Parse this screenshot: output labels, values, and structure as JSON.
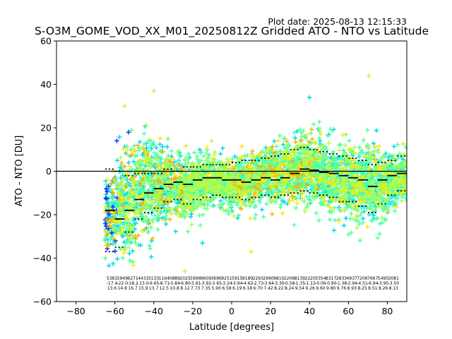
{
  "header": {
    "plot_date": "Plot date: 2025-08-13 12:15:33",
    "title": "S-O3M_GOME_VOD_XX_M01_20250812Z Gridded ATO - NTO vs Latitude"
  },
  "chart_data": {
    "type": "scatter",
    "title": "S-O3M_GOME_VOD_XX_M01_20250812Z Gridded ATO - NTO vs Latitude",
    "xlabel": "Latitude [degrees]",
    "ylabel": "ATO - NTO [DU]",
    "xlim": [
      -90,
      90
    ],
    "ylim": [
      -60,
      60
    ],
    "xticks": [
      -80,
      -60,
      -40,
      -20,
      0,
      20,
      40,
      60,
      80
    ],
    "yticks": [
      -60,
      -40,
      -20,
      0,
      20,
      40,
      60
    ],
    "grid": false,
    "reference_line_y": 0,
    "marker": "+",
    "colors": {
      "cloud_main": "#55ffa0",
      "cloud_cyan": "#00d8f0",
      "cloud_yellow": "#ffe800",
      "cloud_green": "#a8ff50",
      "cloud_orange": "#ffb000",
      "cloud_blue": "#1030ff",
      "median": "#000000"
    },
    "bin_width_deg": 5,
    "bin_centers": [
      -62.5,
      -57.5,
      -52.5,
      -47.5,
      -42.5,
      -37.5,
      -32.5,
      -27.5,
      -22.5,
      -17.5,
      -12.5,
      -7.5,
      -2.5,
      2.5,
      7.5,
      12.5,
      17.5,
      22.5,
      27.5,
      32.5,
      37.5,
      42.5,
      47.5,
      52.5,
      57.5,
      62.5,
      67.5,
      72.5,
      77.5,
      82.5,
      87.5
    ],
    "median": [
      -18,
      -22,
      -18,
      -13,
      -10,
      -8,
      -6,
      -5,
      -6,
      -4,
      -3,
      -3,
      -4,
      -4,
      -5,
      -4,
      -3,
      -4,
      -3,
      -1,
      1,
      0.5,
      -0.5,
      -1,
      -2,
      -3,
      -4,
      -7,
      -4,
      -2,
      -1
    ],
    "upper_percentile": [
      1,
      0,
      -2,
      -1,
      -1,
      -1,
      1,
      0,
      2,
      2,
      3,
      3,
      3,
      4,
      5,
      5,
      6,
      7,
      8,
      10,
      11,
      10,
      9,
      8,
      7,
      6,
      5,
      3,
      4,
      5,
      7
    ],
    "lower_percentile": [
      -37,
      -35,
      -28,
      -22,
      -19,
      -17,
      -14,
      -13,
      -15,
      -13,
      -12,
      -11,
      -12,
      -12,
      -13,
      -12,
      -11,
      -12,
      -11,
      -10,
      -9,
      -10,
      -11,
      -12,
      -14,
      -14,
      -16,
      -19,
      -15,
      -11,
      -9
    ],
    "cloud_upper": [
      8,
      16,
      22,
      26,
      28,
      20,
      16,
      13,
      14,
      14,
      14,
      12,
      11,
      12,
      14,
      16,
      19,
      21,
      22,
      24,
      25,
      24,
      23,
      20,
      19,
      20,
      22,
      22,
      18,
      16,
      14
    ],
    "cloud_lower": [
      -45,
      -50,
      -54,
      -48,
      -42,
      -34,
      -30,
      -28,
      -30,
      -25,
      -22,
      -21,
      -22,
      -22,
      -24,
      -22,
      -21,
      -23,
      -23,
      -25,
      -24,
      -24,
      -26,
      -28,
      -29,
      -30,
      -33,
      -34,
      -32,
      -26,
      -20
    ],
    "bin_label_rows": [
      [
        "5381",
        "5949",
        "6271",
        "4433",
        "3133",
        "1164",
        "0889",
        "2025",
        "5996",
        "9609",
        "3696",
        "9251",
        "5915",
        "9189",
        "2293",
        "2960",
        "9810",
        "2206",
        "8139",
        "2220",
        "3354",
        "8317",
        "2833",
        "4937",
        "7206",
        "7667",
        "5495",
        "3081"
      ],
      [
        "-17.4",
        "-22.0",
        "-18.2",
        "-13.0",
        "-9.65",
        "-8.71",
        "-5.84",
        "-6.80",
        "-5.91",
        "-3.92",
        "-3.65",
        "-3.24",
        "-3.94",
        "-4.62",
        "-2.73",
        "-3.64",
        "-3.30",
        "-0.58",
        "-1.35",
        "-1.13",
        "-0.06",
        "-0.90",
        "-1.38",
        "-2.94",
        "-4.51",
        "-6.94",
        "-3.95",
        "-3.50"
      ],
      [
        "13.6",
        "14.8",
        "16.7",
        "15.9",
        "13.7",
        "12.5",
        "10.8",
        "8.12",
        "7.73",
        "7.35",
        "5.90",
        "6.58",
        "6.19",
        "6.18",
        "6.70",
        "7.42",
        "8.22",
        "8.24",
        "9.54",
        "9.26",
        "9.60",
        "9.80",
        "9.76",
        "8.93",
        "8.25",
        "8.51",
        "8.26",
        "8.13"
      ]
    ]
  }
}
